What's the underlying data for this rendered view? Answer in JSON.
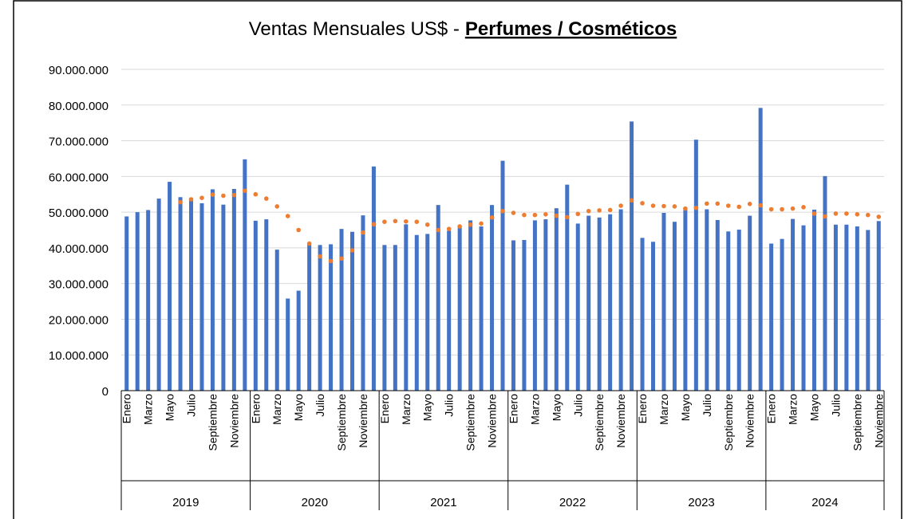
{
  "chart_data": {
    "type": "bar",
    "title": "Ventas Mensuales US$ -",
    "title_emphasis": "Perfumes / Cosméticos",
    "categories": [
      "Enero",
      null,
      "Marzo",
      null,
      "Mayo",
      null,
      "Julio",
      null,
      "Septiembre",
      null,
      "Noviembre",
      null,
      "Enero",
      null,
      "Marzo",
      null,
      "Mayo",
      null,
      "Julio",
      null,
      "Septiembre",
      null,
      "Noviembre",
      null,
      "Enero",
      null,
      "Marzo",
      null,
      "Mayo",
      null,
      "Julio",
      null,
      "Septiembre",
      null,
      "Noviembre",
      null,
      "Enero",
      null,
      "Marzo",
      null,
      "Mayo",
      null,
      "Julio",
      null,
      "Septiembre",
      null,
      "Noviembre",
      null,
      "Enero",
      null,
      "Marzo",
      null,
      "Mayo",
      null,
      "Julio",
      null,
      "Septiembre",
      null,
      "Noviembre",
      null,
      "Enero",
      null,
      "Marzo",
      null,
      "Mayo",
      null,
      "Julio",
      null,
      "Septiembre",
      null,
      "Noviembre"
    ],
    "years": [
      "2019",
      "2019",
      "2019",
      "2019",
      "2019",
      "2019",
      "2019",
      "2019",
      "2019",
      "2019",
      "2019",
      "2019",
      "2020",
      "2020",
      "2020",
      "2020",
      "2020",
      "2020",
      "2020",
      "2020",
      "2020",
      "2020",
      "2020",
      "2020",
      "2021",
      "2021",
      "2021",
      "2021",
      "2021",
      "2021",
      "2021",
      "2021",
      "2021",
      "2021",
      "2021",
      "2021",
      "2022",
      "2022",
      "2022",
      "2022",
      "2022",
      "2022",
      "2022",
      "2022",
      "2022",
      "2022",
      "2022",
      "2022",
      "2023",
      "2023",
      "2023",
      "2023",
      "2023",
      "2023",
      "2023",
      "2023",
      "2023",
      "2023",
      "2023",
      "2023",
      "2024",
      "2024",
      "2024",
      "2024",
      "2024",
      "2024",
      "2024",
      "2024",
      "2024",
      "2024",
      "2024"
    ],
    "series": [
      {
        "color": "#4472c4",
        "values": [
          48800000,
          50000000,
          50600000,
          53800000,
          58500000,
          54200000,
          54000000,
          52500000,
          56400000,
          52100000,
          56500000,
          64800000,
          47600000,
          48000000,
          39500000,
          25800000,
          28000000,
          41000000,
          40800000,
          41000000,
          45300000,
          44500000,
          49100000,
          62800000,
          40800000,
          40800000,
          46600000,
          43600000,
          43900000,
          52000000,
          44800000,
          45700000,
          47700000,
          46000000,
          52000000,
          64400000,
          42100000,
          42200000,
          47700000,
          48000000,
          51100000,
          57700000,
          46800000,
          49000000,
          48500000,
          49400000,
          50800000,
          75400000,
          42800000,
          41700000,
          49800000,
          47300000,
          50900000,
          70300000,
          50800000,
          47800000,
          44600000,
          45100000,
          49000000,
          79200000,
          41200000,
          42500000,
          48100000,
          46300000,
          50700000,
          60100000,
          46500000,
          46500000,
          46000000,
          45000000,
          47500000
        ]
      },
      {
        "type": "dotted",
        "color": "#ed7d31",
        "values": [
          null,
          null,
          null,
          null,
          null,
          52800000,
          53600000,
          54000000,
          54900000,
          54600000,
          54800000,
          56000000,
          55000000,
          53800000,
          51600000,
          48900000,
          45000000,
          41200000,
          37600000,
          36300000,
          37000000,
          39300000,
          44300000,
          46600000,
          47300000,
          47500000,
          47400000,
          47300000,
          46500000,
          45000000,
          45300000,
          46000000,
          46500000,
          46800000,
          48500000,
          50300000,
          49800000,
          49200000,
          49200000,
          49400000,
          49000000,
          48600000,
          49500000,
          50300000,
          50500000,
          50600000,
          51800000,
          53300000,
          52500000,
          51800000,
          51700000,
          51600000,
          51000000,
          51200000,
          52400000,
          52400000,
          51800000,
          51500000,
          52300000,
          51900000,
          50800000,
          50800000,
          51000000,
          51400000,
          49600000,
          48800000,
          49600000,
          49600000,
          49400000,
          49200000,
          48700000
        ]
      }
    ],
    "ylim": [
      0,
      90000000
    ],
    "yticks": [
      0,
      {
        "value": 10000000,
        "label": "10.000.000"
      },
      {
        "value": 20000000,
        "label": "20.000.000"
      },
      {
        "value": 30000000,
        "label": "30.000.000"
      },
      {
        "value": 40000000,
        "label": "40.000.000"
      },
      {
        "value": 50000000,
        "label": "50.000.000"
      },
      {
        "value": 60000000,
        "label": "60.000.000"
      },
      {
        "value": 70000000,
        "label": "70.000.000"
      },
      {
        "value": 80000000,
        "label": "80.000.000"
      },
      {
        "value": 90000000,
        "label": "90.000.000"
      }
    ],
    "grid": true
  }
}
